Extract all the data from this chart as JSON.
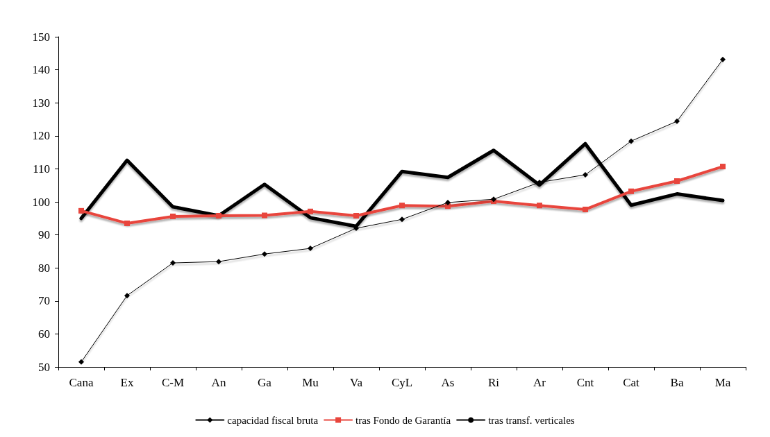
{
  "chart_data": {
    "type": "line",
    "categories": [
      "Cana",
      "Ex",
      "C-M",
      "An",
      "Ga",
      "Mu",
      "Va",
      "CyL",
      "As",
      "Ri",
      "Ar",
      "Cnt",
      "Cat",
      "Ba",
      "Ma"
    ],
    "ylim": [
      50,
      150
    ],
    "yticks": [
      50,
      60,
      70,
      80,
      90,
      100,
      110,
      120,
      130,
      140,
      150
    ],
    "grid": false,
    "legend": "bottom",
    "series": [
      {
        "name": "capacidad fiscal bruta",
        "color": "#000000",
        "marker": "diamond",
        "values": [
          51.5,
          71.6,
          81.5,
          81.9,
          84.2,
          85.9,
          92.0,
          94.7,
          99.8,
          100.8,
          105.9,
          108.2,
          118.4,
          124.4,
          143.1
        ]
      },
      {
        "name": "tras Fondo de Garantía",
        "color": "#e8453c",
        "marker": "square",
        "values": [
          97.3,
          93.5,
          95.6,
          95.8,
          95.9,
          97.1,
          95.8,
          98.9,
          98.7,
          100.2,
          98.9,
          97.7,
          103.2,
          106.3,
          110.7
        ]
      },
      {
        "name": "tras transf. verticales",
        "color": "#000000",
        "marker": "none",
        "values": [
          95.0,
          112.6,
          98.5,
          95.8,
          105.3,
          95.2,
          92.6,
          109.2,
          107.4,
          115.6,
          105.1,
          117.6,
          99.0,
          102.4,
          100.4
        ]
      }
    ]
  }
}
